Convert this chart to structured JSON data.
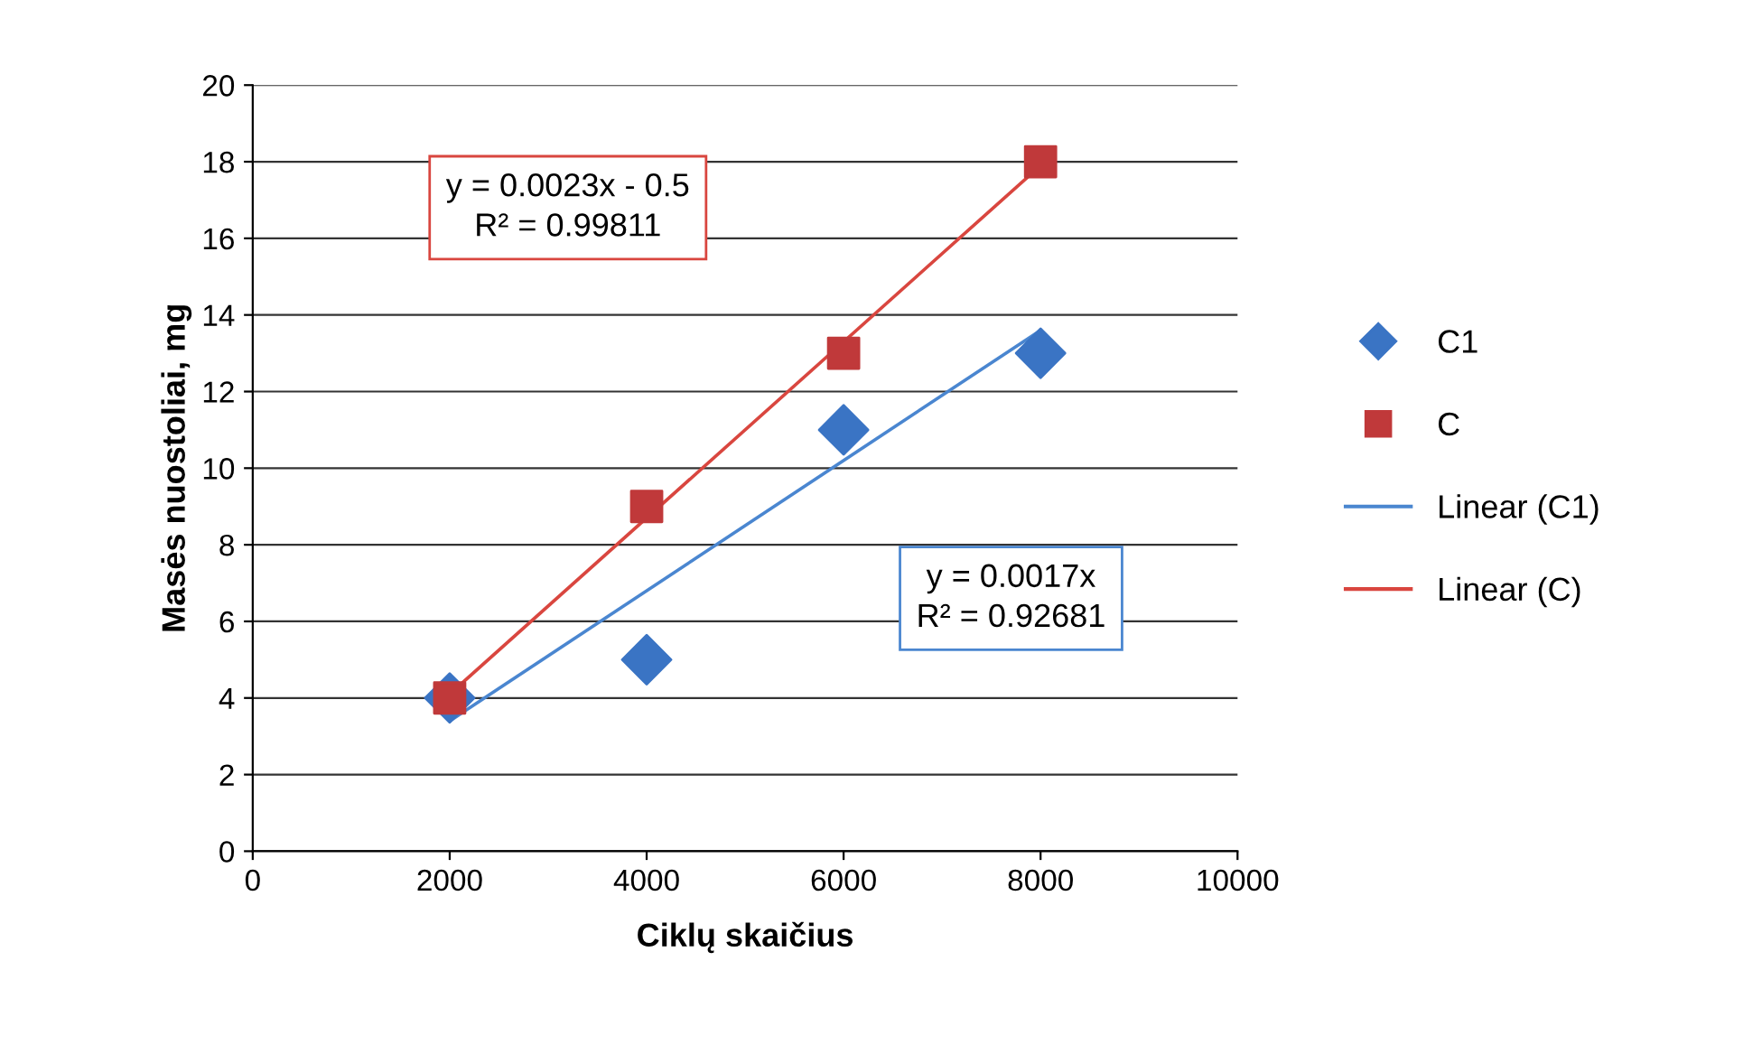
{
  "chart_data": {
    "type": "scatter",
    "xlabel": "Ciklų skaičius",
    "ylabel": "Masės nuostoliai, mg",
    "xlim": [
      0,
      10000
    ],
    "xticks": [
      0,
      2000,
      4000,
      6000,
      8000,
      10000
    ],
    "ylim": [
      0,
      20
    ],
    "yticks": [
      0,
      2,
      4,
      6,
      8,
      10,
      12,
      14,
      16,
      18,
      20
    ],
    "grid": "y",
    "legend": "right",
    "series": [
      {
        "name": "C1",
        "color": "#3a74c4",
        "marker": "diamond",
        "x": [
          2000,
          4000,
          6000,
          8000
        ],
        "values": [
          4,
          5,
          11,
          13
        ]
      },
      {
        "name": "C",
        "color": "#c0393a",
        "marker": "square",
        "x": [
          2000,
          4000,
          6000,
          8000
        ],
        "values": [
          4,
          9,
          13,
          18
        ]
      },
      {
        "name": "Linear (C1)",
        "type": "line",
        "color": "#4a86d0",
        "x": [
          2000,
          8000
        ],
        "values": [
          3.4,
          13.6
        ]
      },
      {
        "name": "Linear (C)",
        "type": "line",
        "color": "#d9463f",
        "x": [
          2000,
          8000
        ],
        "values": [
          4.1,
          17.9
        ]
      }
    ],
    "annotations": [
      "y = 0.0023x - 0.5\nR² = 0.99811",
      "y = 0.0017x\nR² = 0.92681"
    ]
  }
}
